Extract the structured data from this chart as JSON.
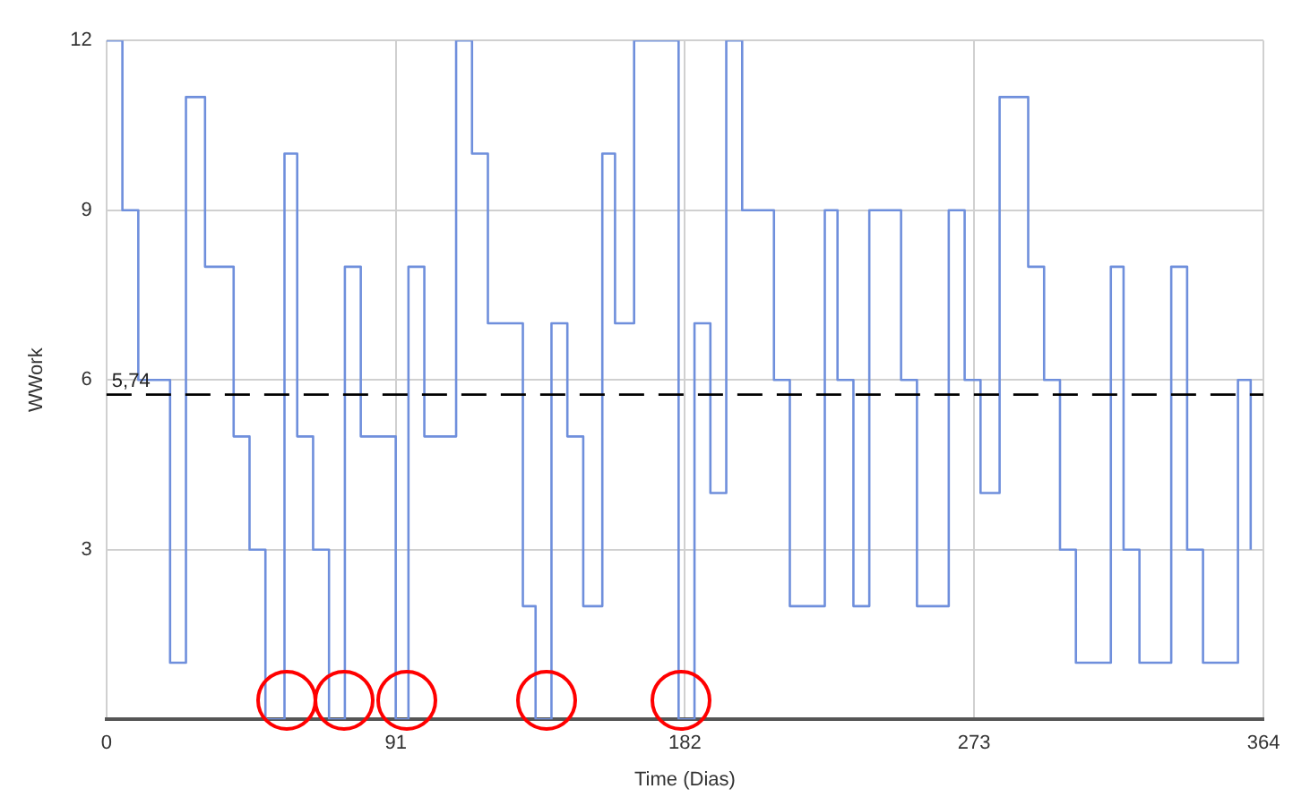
{
  "chart_data": {
    "type": "step",
    "xlabel": "Time (Dias)",
    "ylabel": "WWork",
    "x": [
      0,
      5,
      10,
      20,
      25,
      31,
      40,
      45,
      50,
      56,
      60,
      65,
      70,
      75,
      80,
      91,
      95,
      100,
      110,
      115,
      120,
      131,
      135,
      140,
      145,
      150,
      156,
      160,
      166,
      180,
      185,
      190,
      195,
      200,
      210,
      215,
      226,
      230,
      235,
      240,
      250,
      255,
      265,
      270,
      275,
      281,
      290,
      295,
      300,
      305,
      316,
      320,
      325,
      335,
      340,
      345,
      356,
      360
    ],
    "series": [
      {
        "color": "#6f8fdc",
        "values": [
          12,
          9,
          6,
          1,
          11,
          8,
          5,
          3,
          0,
          10,
          5,
          3,
          0,
          8,
          5,
          0,
          8,
          5,
          12,
          10,
          7,
          2,
          0,
          7,
          5,
          2,
          10,
          7,
          12,
          0,
          7,
          4,
          12,
          9,
          6,
          2,
          9,
          6,
          2,
          9,
          6,
          2,
          9,
          6,
          4,
          11,
          8,
          6,
          3,
          1,
          8,
          3,
          1,
          8,
          3,
          1,
          6,
          3
        ]
      }
    ],
    "xlim": [
      0,
      364
    ],
    "xticks": [
      0,
      91,
      182,
      273,
      364
    ],
    "ylim": [
      0,
      12
    ],
    "yticks": [
      3,
      6,
      9,
      12
    ],
    "grid": true,
    "legend": false,
    "marker": "none",
    "line_style": "solid",
    "ref_lines": [
      {
        "axis": "y",
        "value": 5.74,
        "label": "5,74",
        "color": "#000000",
        "line_style": "dashed"
      }
    ]
  }
}
